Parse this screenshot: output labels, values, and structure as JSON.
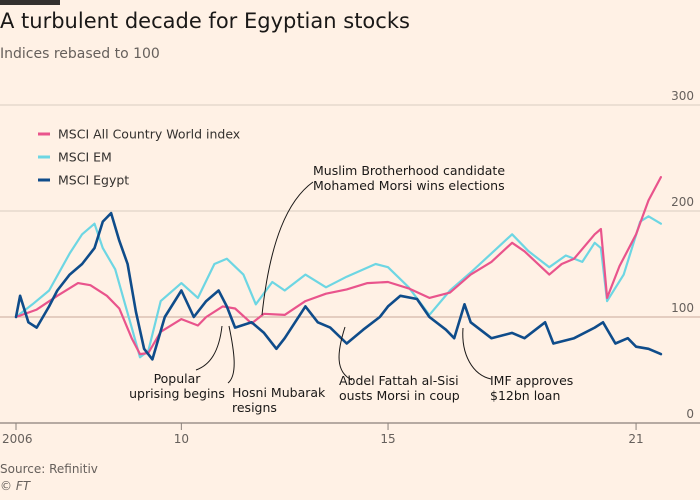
{
  "title": "A turbulent decade for Egyptian stocks",
  "subtitle": "Indices rebased to 100",
  "source": "Source: Refinitiv",
  "credit": "© FT",
  "colors": {
    "background": "#fff1e5",
    "acwi": "#e9548c",
    "em": "#6dd6e3",
    "egypt": "#0f4c8a",
    "grid": "#d9cdc1",
    "baseline": "#c8a99a"
  },
  "chart_data": {
    "type": "line",
    "title": "A turbulent decade for Egyptian stocks",
    "subtitle": "Indices rebased to 100",
    "xlabel": "",
    "ylabel": "",
    "x_ticks": [
      {
        "value": 2006,
        "label": "2006"
      },
      {
        "value": 2010,
        "label": "10"
      },
      {
        "value": 2015,
        "label": "15"
      },
      {
        "value": 2021,
        "label": "21"
      }
    ],
    "y_ticks": [
      0,
      100,
      200,
      300
    ],
    "xlim": [
      2006,
      2021.7
    ],
    "ylim": [
      0,
      300
    ],
    "grid": true,
    "legend_position": "top-left",
    "series": [
      {
        "name": "MSCI All Country World index",
        "color": "#e9548c",
        "x": [
          2006,
          2006.5,
          2007,
          2007.5,
          2007.8,
          2008.2,
          2008.5,
          2008.8,
          2009.0,
          2009.2,
          2009.5,
          2010.0,
          2010.4,
          2010.6,
          2011.0,
          2011.3,
          2011.7,
          2012.0,
          2012.5,
          2013.0,
          2013.5,
          2014.0,
          2014.5,
          2015.0,
          2015.5,
          2016.0,
          2016.5,
          2017.0,
          2017.5,
          2018.0,
          2018.3,
          2018.9,
          2019.2,
          2019.5,
          2020.0,
          2020.15,
          2020.3,
          2020.6,
          2021.0,
          2021.3,
          2021.6
        ],
        "y": [
          100,
          107,
          120,
          132,
          130,
          120,
          108,
          80,
          65,
          66,
          86,
          98,
          92,
          100,
          110,
          108,
          94,
          103,
          102,
          115,
          122,
          126,
          132,
          133,
          127,
          118,
          123,
          140,
          152,
          170,
          162,
          140,
          150,
          155,
          178,
          183,
          118,
          148,
          178,
          210,
          232
        ]
      },
      {
        "name": "MSCI EM",
        "color": "#6dd6e3",
        "x": [
          2006,
          2006.4,
          2006.8,
          2007.3,
          2007.6,
          2007.9,
          2008.1,
          2008.4,
          2008.8,
          2009.0,
          2009.2,
          2009.5,
          2010.0,
          2010.4,
          2010.8,
          2011.1,
          2011.5,
          2011.8,
          2012.2,
          2012.5,
          2013.0,
          2013.5,
          2014.0,
          2014.7,
          2015.0,
          2015.5,
          2016.0,
          2016.5,
          2017.0,
          2017.5,
          2018.0,
          2018.4,
          2018.9,
          2019.3,
          2019.7,
          2020.0,
          2020.15,
          2020.3,
          2020.7,
          2021.1,
          2021.3,
          2021.6
        ],
        "y": [
          100,
          112,
          125,
          160,
          178,
          188,
          165,
          145,
          90,
          62,
          68,
          115,
          132,
          118,
          150,
          155,
          140,
          112,
          133,
          125,
          140,
          128,
          138,
          150,
          147,
          128,
          102,
          125,
          142,
          160,
          178,
          162,
          147,
          158,
          152,
          170,
          165,
          115,
          140,
          190,
          195,
          188
        ]
      },
      {
        "name": "MSCI Egypt",
        "color": "#0f4c8a",
        "x": [
          2006,
          2006.1,
          2006.3,
          2006.5,
          2006.8,
          2007.0,
          2007.3,
          2007.6,
          2007.9,
          2008.1,
          2008.3,
          2008.5,
          2008.7,
          2008.9,
          2009.1,
          2009.3,
          2009.6,
          2010.0,
          2010.3,
          2010.6,
          2010.9,
          2011.1,
          2011.3,
          2011.7,
          2012.0,
          2012.3,
          2012.5,
          2013.0,
          2013.3,
          2013.6,
          2014.0,
          2014.4,
          2014.8,
          2015.0,
          2015.3,
          2015.7,
          2016.0,
          2016.4,
          2016.6,
          2016.85,
          2017.0,
          2017.5,
          2018.0,
          2018.3,
          2018.8,
          2019.0,
          2019.5,
          2020.0,
          2020.2,
          2020.5,
          2020.8,
          2021.0,
          2021.3,
          2021.6
        ],
        "y": [
          100,
          120,
          95,
          90,
          110,
          125,
          140,
          150,
          165,
          190,
          198,
          172,
          150,
          105,
          70,
          60,
          100,
          125,
          100,
          115,
          125,
          110,
          90,
          95,
          85,
          70,
          80,
          110,
          95,
          90,
          75,
          88,
          100,
          110,
          120,
          117,
          100,
          88,
          80,
          112,
          95,
          80,
          85,
          80,
          95,
          75,
          80,
          90,
          95,
          75,
          80,
          72,
          70,
          65
        ]
      }
    ],
    "annotations": [
      {
        "lines": [
          "Popular",
          "uprising begins"
        ]
      },
      {
        "lines": [
          "Hosni Mubarak",
          "resigns"
        ]
      },
      {
        "lines": [
          "Muslim Brotherhood candidate",
          "Mohamed Morsi wins elections"
        ]
      },
      {
        "lines": [
          "Abdel Fattah al-Sisi",
          "ousts Morsi in coup"
        ]
      },
      {
        "lines": [
          "IMF approves",
          "$12bn loan"
        ]
      }
    ]
  }
}
